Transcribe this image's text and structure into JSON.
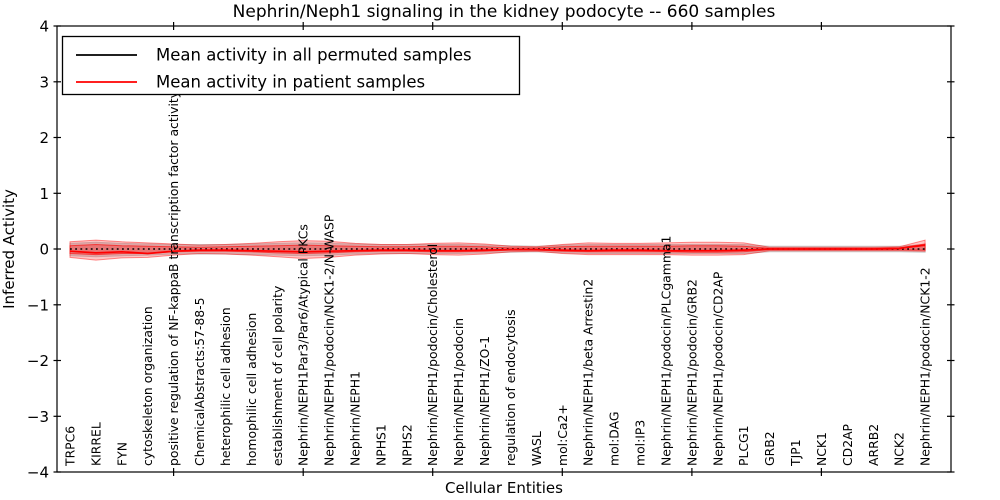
{
  "chart_data": {
    "type": "line",
    "title": "Nephrin/Neph1 signaling in the kidney podocyte -- 660 samples",
    "xlabel": "Cellular Entities",
    "ylabel": "Inferred Activity",
    "ylim": [
      -4,
      4
    ],
    "yticks": [
      -4,
      -3,
      -2,
      -1,
      0,
      1,
      2,
      3,
      4
    ],
    "xtick_positions": [
      5,
      10,
      15,
      20,
      25,
      30
    ],
    "grid": false,
    "legend_position": "upper left",
    "categories": [
      "TRPC6",
      "KIRREL",
      "FYN",
      "cytoskeleton organization",
      "positive regulation of NF-kappaB transcription factor activity",
      "ChemicalAbstracts:57-88-5",
      "heterophilic cell adhesion",
      "homophilic cell adhesion",
      "establishment of cell polarity",
      "Nephrin/NEPH1Par3/Par6/Atypical PKCs",
      "Nephrin/NEPH1/podocin/NCK1-2/N-WASP",
      "Nephrin/NEPH1",
      "NPHS1",
      "NPHS2",
      "Nephrin/NEPH1/podocin/Cholesterol",
      "Nephrin/NEPH1/podocin",
      "Nephrin/NEPH1/ZO-1",
      "regulation of endocytosis",
      "WASL",
      "mol:Ca2+",
      "Nephrin/NEPH1/beta Arrestin2",
      "mol:DAG",
      "mol:IP3",
      "Nephrin/NEPH1/podocin/PLCgamma1",
      "Nephrin/NEPH1/podocin/GRB2",
      "Nephrin/NEPH1/podocin/CD2AP",
      "PLCG1",
      "GRB2",
      "TJP1",
      "NCK1",
      "CD2AP",
      "ARRB2",
      "NCK2",
      "Nephrin/NEPH1/podocin/NCK1-2"
    ],
    "series": [
      {
        "name": "Mean activity in all permuted samples",
        "color": "#000000",
        "style": "dotted",
        "values": [
          0,
          0,
          0,
          0,
          0,
          0,
          0,
          0,
          0,
          0,
          0,
          0,
          0,
          0,
          0,
          0,
          0,
          0,
          0,
          0,
          0,
          0,
          0,
          0,
          0,
          0,
          0,
          0,
          0,
          0,
          0,
          0,
          0,
          0
        ]
      },
      {
        "name": "Mean activity in patient samples",
        "color": "#ff0000",
        "style": "solid",
        "values": [
          -0.04,
          -0.07,
          -0.05,
          -0.08,
          -0.04,
          -0.02,
          -0.02,
          -0.03,
          -0.04,
          -0.05,
          -0.04,
          -0.03,
          -0.02,
          -0.02,
          -0.03,
          -0.03,
          -0.02,
          -0.01,
          -0.01,
          -0.02,
          -0.03,
          -0.02,
          -0.02,
          -0.03,
          -0.03,
          -0.03,
          -0.02,
          0,
          0,
          0,
          0,
          0,
          0.01,
          0.07
        ]
      }
    ],
    "bands": [
      {
        "name": "permuted-samples-range",
        "color": "#c8c8c8",
        "opacity": 0.75,
        "upper": [
          0.1,
          0.12,
          0.1,
          0.09,
          0.08,
          0.08,
          0.08,
          0.09,
          0.1,
          0.11,
          0.1,
          0.09,
          0.08,
          0.08,
          0.08,
          0.08,
          0.07,
          0.06,
          0.05,
          0.07,
          0.08,
          0.08,
          0.08,
          0.08,
          0.08,
          0.08,
          0.08,
          0.05,
          0.05,
          0.05,
          0.05,
          0.05,
          0.05,
          0.08
        ],
        "lower": [
          -0.12,
          -0.14,
          -0.12,
          -0.11,
          -0.09,
          -0.09,
          -0.09,
          -0.1,
          -0.11,
          -0.12,
          -0.11,
          -0.09,
          -0.08,
          -0.08,
          -0.08,
          -0.08,
          -0.07,
          -0.06,
          -0.05,
          -0.07,
          -0.08,
          -0.08,
          -0.08,
          -0.08,
          -0.08,
          -0.08,
          -0.08,
          -0.05,
          -0.05,
          -0.05,
          -0.05,
          -0.05,
          -0.05,
          -0.06
        ]
      },
      {
        "name": "patient-samples-range-outer",
        "color": "#ff0000",
        "opacity": 0.22,
        "upper": [
          0.13,
          0.16,
          0.13,
          0.11,
          0.09,
          0.07,
          0.08,
          0.1,
          0.13,
          0.15,
          0.14,
          0.1,
          0.08,
          0.08,
          0.1,
          0.11,
          0.09,
          0.05,
          0.04,
          0.08,
          0.11,
          0.1,
          0.1,
          0.11,
          0.12,
          0.12,
          0.11,
          0.03,
          0.03,
          0.03,
          0.03,
          0.03,
          0.04,
          0.16
        ],
        "lower": [
          -0.15,
          -0.2,
          -0.16,
          -0.15,
          -0.11,
          -0.08,
          -0.09,
          -0.11,
          -0.14,
          -0.17,
          -0.15,
          -0.11,
          -0.09,
          -0.08,
          -0.1,
          -0.11,
          -0.09,
          -0.05,
          -0.04,
          -0.08,
          -0.1,
          -0.1,
          -0.1,
          -0.1,
          -0.11,
          -0.11,
          -0.1,
          -0.03,
          -0.03,
          -0.03,
          -0.03,
          -0.03,
          -0.03,
          -0.04
        ]
      },
      {
        "name": "patient-samples-range-inner",
        "color": "#ff0000",
        "opacity": 0.3,
        "upper": [
          0.06,
          0.08,
          0.06,
          0.05,
          0.04,
          0.03,
          0.04,
          0.05,
          0.06,
          0.07,
          0.06,
          0.05,
          0.04,
          0.04,
          0.05,
          0.05,
          0.04,
          0.02,
          0.02,
          0.04,
          0.05,
          0.05,
          0.05,
          0.05,
          0.06,
          0.06,
          0.05,
          0.015,
          0.015,
          0.015,
          0.015,
          0.015,
          0.02,
          0.09
        ],
        "lower": [
          -0.08,
          -0.1,
          -0.08,
          -0.08,
          -0.05,
          -0.04,
          -0.04,
          -0.05,
          -0.07,
          -0.08,
          -0.07,
          -0.05,
          -0.04,
          -0.04,
          -0.05,
          -0.05,
          -0.04,
          -0.02,
          -0.02,
          -0.04,
          -0.05,
          -0.05,
          -0.05,
          -0.05,
          -0.06,
          -0.06,
          -0.05,
          -0.015,
          -0.015,
          -0.015,
          -0.015,
          -0.015,
          -0.015,
          -0.02
        ]
      }
    ],
    "legend": {
      "entries": [
        {
          "label": "Mean activity in all permuted samples",
          "color": "#000000"
        },
        {
          "label": "Mean activity in patient samples",
          "color": "#ff0000"
        }
      ]
    }
  }
}
